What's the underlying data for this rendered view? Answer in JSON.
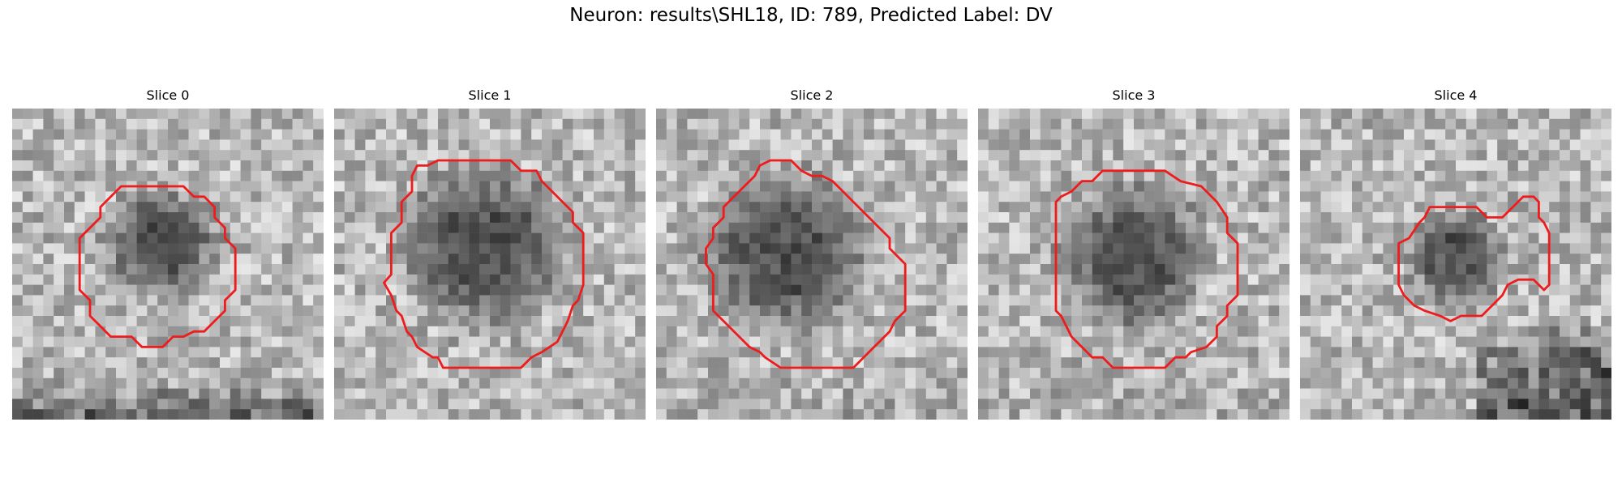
{
  "figure": {
    "title": "Neuron: results\\SHL18, ID: 789, Predicted Label: DV"
  },
  "colors": {
    "contour": "#ee1c1c",
    "background": "#ffffff"
  },
  "panels": [
    {
      "title": "Slice 0",
      "image": {
        "seed": 11,
        "grid": 30,
        "blob": {
          "cx": 14.5,
          "cy": 13.0,
          "r": 6.5,
          "level": 0.42
        },
        "bottom_dark": 0.75,
        "right_dark": 0.0
      },
      "contour": [
        [
          10.5,
          7.5
        ],
        [
          16.5,
          7.5
        ],
        [
          17.5,
          8.5
        ],
        [
          18.5,
          8.5
        ],
        [
          19.5,
          9.5
        ],
        [
          19.5,
          10.5
        ],
        [
          20.5,
          11.5
        ],
        [
          20.5,
          12.5
        ],
        [
          21.5,
          13.5
        ],
        [
          21.5,
          17.5
        ],
        [
          20.5,
          18.5
        ],
        [
          20.5,
          19.5
        ],
        [
          19.5,
          20.5
        ],
        [
          18.5,
          21.5
        ],
        [
          17.5,
          21.5
        ],
        [
          16.5,
          22.0
        ],
        [
          15.5,
          22.0
        ],
        [
          14.5,
          23.0
        ],
        [
          12.5,
          23.0
        ],
        [
          11.5,
          22.0
        ],
        [
          9.5,
          22.0
        ],
        [
          8.5,
          21.0
        ],
        [
          7.5,
          20.0
        ],
        [
          7.5,
          18.5
        ],
        [
          6.5,
          17.5
        ],
        [
          6.5,
          12.5
        ],
        [
          7.5,
          11.5
        ],
        [
          8.5,
          10.5
        ],
        [
          8.5,
          9.5
        ],
        [
          9.5,
          8.5
        ]
      ]
    },
    {
      "title": "Slice 1",
      "image": {
        "seed": 23,
        "grid": 30,
        "blob": {
          "cx": 14.5,
          "cy": 13.5,
          "r": 9.5,
          "level": 0.35
        },
        "bottom_dark": 0.0,
        "right_dark": 0.0
      },
      "contour": [
        [
          10.0,
          5.0
        ],
        [
          17.0,
          5.0
        ],
        [
          18.0,
          6.0
        ],
        [
          19.5,
          6.0
        ],
        [
          20.0,
          7.0
        ],
        [
          21.0,
          8.0
        ],
        [
          22.0,
          9.0
        ],
        [
          23.0,
          10.0
        ],
        [
          23.0,
          11.0
        ],
        [
          24.0,
          12.0
        ],
        [
          24.0,
          17.0
        ],
        [
          23.5,
          18.5
        ],
        [
          23.0,
          19.0
        ],
        [
          22.5,
          20.5
        ],
        [
          22.0,
          21.5
        ],
        [
          21.5,
          22.5
        ],
        [
          20.0,
          23.5
        ],
        [
          19.0,
          24.0
        ],
        [
          18.0,
          25.0
        ],
        [
          10.5,
          25.0
        ],
        [
          10.0,
          24.0
        ],
        [
          9.5,
          24.0
        ],
        [
          8.0,
          23.0
        ],
        [
          7.5,
          22.0
        ],
        [
          7.0,
          21.5
        ],
        [
          6.5,
          20.0
        ],
        [
          6.0,
          19.5
        ],
        [
          5.5,
          18.0
        ],
        [
          4.8,
          16.8
        ],
        [
          5.5,
          16.0
        ],
        [
          5.5,
          12.0
        ],
        [
          6.5,
          11.0
        ],
        [
          6.5,
          9.0
        ],
        [
          7.5,
          8.0
        ],
        [
          7.5,
          6.5
        ],
        [
          8.0,
          5.5
        ],
        [
          9.0,
          5.5
        ]
      ]
    },
    {
      "title": "Slice 2",
      "image": {
        "seed": 37,
        "grid": 30,
        "blob": {
          "cx": 12.5,
          "cy": 14.0,
          "r": 9.5,
          "level": 0.32
        },
        "bottom_dark": 0.2,
        "right_dark": 0.0
      },
      "contour": [
        [
          11.0,
          5.0
        ],
        [
          13.0,
          5.0
        ],
        [
          14.0,
          6.0
        ],
        [
          15.0,
          6.5
        ],
        [
          16.0,
          6.5
        ],
        [
          17.0,
          7.0
        ],
        [
          18.0,
          8.0
        ],
        [
          19.5,
          9.5
        ],
        [
          20.5,
          10.5
        ],
        [
          21.5,
          11.5
        ],
        [
          22.5,
          12.5
        ],
        [
          22.5,
          13.5
        ],
        [
          23.5,
          14.5
        ],
        [
          24.0,
          15.0
        ],
        [
          24.0,
          19.5
        ],
        [
          23.0,
          20.5
        ],
        [
          22.5,
          21.5
        ],
        [
          21.5,
          22.5
        ],
        [
          20.5,
          23.5
        ],
        [
          19.5,
          24.5
        ],
        [
          19.0,
          25.0
        ],
        [
          12.0,
          25.0
        ],
        [
          10.5,
          24.0
        ],
        [
          10.0,
          23.5
        ],
        [
          9.0,
          23.0
        ],
        [
          8.5,
          22.5
        ],
        [
          7.5,
          21.5
        ],
        [
          6.5,
          20.5
        ],
        [
          5.5,
          19.5
        ],
        [
          5.5,
          16.0
        ],
        [
          4.8,
          15.0
        ],
        [
          4.8,
          13.5
        ],
        [
          5.5,
          12.5
        ],
        [
          5.5,
          11.5
        ],
        [
          6.5,
          10.5
        ],
        [
          6.5,
          9.5
        ],
        [
          7.5,
          8.5
        ],
        [
          8.5,
          7.5
        ],
        [
          9.5,
          6.5
        ],
        [
          10.0,
          5.5
        ]
      ]
    },
    {
      "title": "Slice 3",
      "image": {
        "seed": 51,
        "grid": 30,
        "blob": {
          "cx": 15.0,
          "cy": 14.5,
          "r": 8.5,
          "level": 0.28
        },
        "bottom_dark": 0.1,
        "right_dark": 0.0
      },
      "contour": [
        [
          12.0,
          6.0
        ],
        [
          18.0,
          6.0
        ],
        [
          19.5,
          7.0
        ],
        [
          21.5,
          7.5
        ],
        [
          22.0,
          8.0
        ],
        [
          23.0,
          9.0
        ],
        [
          24.0,
          10.5
        ],
        [
          24.0,
          12.0
        ],
        [
          25.0,
          13.0
        ],
        [
          25.0,
          18.0
        ],
        [
          24.0,
          19.0
        ],
        [
          24.0,
          20.0
        ],
        [
          23.0,
          21.0
        ],
        [
          23.0,
          22.0
        ],
        [
          22.0,
          23.0
        ],
        [
          20.5,
          23.5
        ],
        [
          20.0,
          24.0
        ],
        [
          19.0,
          24.0
        ],
        [
          18.0,
          25.0
        ],
        [
          13.0,
          25.0
        ],
        [
          12.0,
          24.0
        ],
        [
          11.0,
          24.0
        ],
        [
          10.0,
          23.0
        ],
        [
          9.0,
          22.0
        ],
        [
          8.5,
          21.0
        ],
        [
          8.0,
          20.0
        ],
        [
          7.5,
          19.5
        ],
        [
          7.5,
          9.0
        ],
        [
          8.0,
          8.5
        ],
        [
          9.0,
          8.0
        ],
        [
          10.0,
          7.0
        ],
        [
          11.0,
          7.0
        ]
      ]
    },
    {
      "title": "Slice 4",
      "image": {
        "seed": 67,
        "grid": 30,
        "blob": {
          "cx": 15.0,
          "cy": 14.5,
          "r": 5.5,
          "level": 0.5
        },
        "bottom_dark": 0.0,
        "right_dark": 0.0,
        "corner_dark": 0.8
      },
      "contour": [
        [
          12.5,
          9.5
        ],
        [
          17.0,
          9.5
        ],
        [
          18.0,
          10.5
        ],
        [
          19.5,
          10.5
        ],
        [
          20.5,
          9.5
        ],
        [
          21.5,
          8.5
        ],
        [
          22.5,
          8.5
        ],
        [
          23.0,
          9.0
        ],
        [
          23.0,
          10.5
        ],
        [
          23.5,
          11.0
        ],
        [
          24.0,
          12.0
        ],
        [
          24.0,
          17.0
        ],
        [
          23.5,
          17.5
        ],
        [
          23.0,
          17.0
        ],
        [
          22.5,
          16.5
        ],
        [
          21.0,
          16.5
        ],
        [
          20.0,
          17.0
        ],
        [
          19.5,
          18.0
        ],
        [
          18.5,
          19.0
        ],
        [
          17.5,
          20.0
        ],
        [
          15.5,
          20.0
        ],
        [
          14.5,
          20.5
        ],
        [
          13.5,
          20.0
        ],
        [
          12.0,
          19.5
        ],
        [
          11.0,
          19.0
        ],
        [
          10.0,
          18.0
        ],
        [
          9.5,
          17.0
        ],
        [
          9.5,
          13.0
        ],
        [
          10.5,
          12.5
        ],
        [
          11.5,
          11.0
        ],
        [
          12.0,
          10.5
        ]
      ]
    }
  ]
}
